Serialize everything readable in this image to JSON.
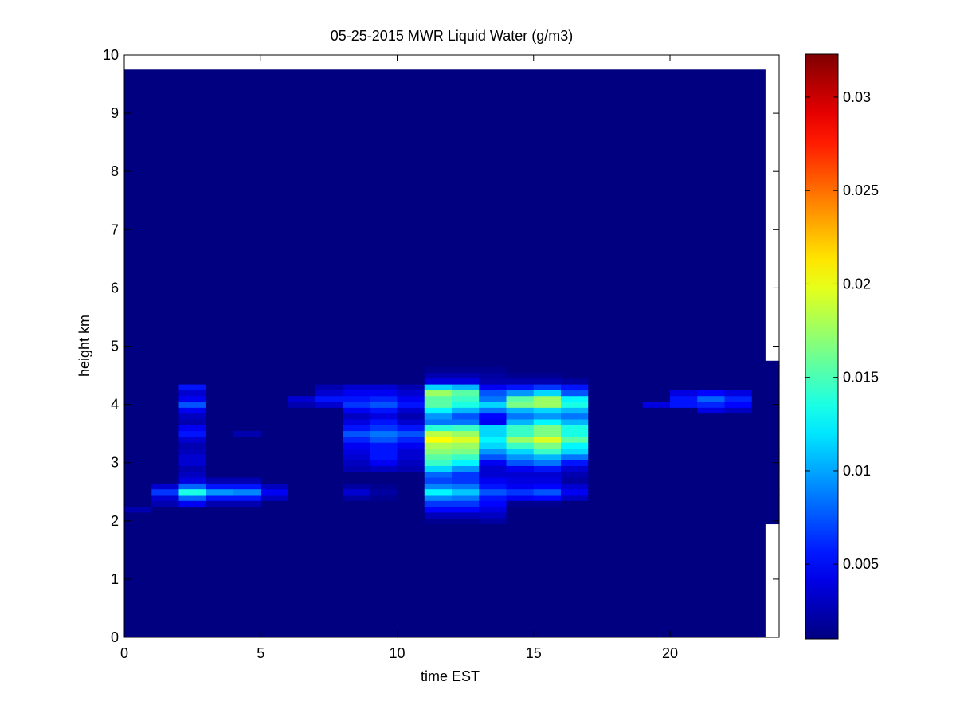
{
  "chart_data": {
    "type": "heatmap",
    "title": "05-25-2015 MWR Liquid Water (g/m3)",
    "xlabel": "time EST",
    "ylabel": "height km",
    "xlim": [
      0,
      24
    ],
    "ylim": [
      0,
      10
    ],
    "x_ticks": [
      0,
      5,
      10,
      15,
      20
    ],
    "y_ticks": [
      0,
      1,
      2,
      3,
      4,
      5,
      6,
      7,
      8,
      9,
      10
    ],
    "colormap": "jet",
    "colorbar": {
      "range": [
        0.001,
        0.0323
      ],
      "ticks": [
        0.005,
        0.01,
        0.015,
        0.02,
        0.025,
        0.03
      ],
      "tick_labels": [
        "0.005",
        "0.01",
        "0.015",
        "0.02",
        "0.025",
        "0.03"
      ]
    },
    "data_extent": {
      "x": [
        0,
        23.5
      ],
      "y": [
        0,
        9.75
      ]
    },
    "background_value": 0.001,
    "time_bins": [
      0.5,
      1.5,
      2.5,
      3.5,
      4.5,
      5.5,
      6.5,
      7.5,
      8.5,
      9.5,
      10.5,
      11.5,
      12.5,
      13.5,
      14.5,
      15.5,
      16.5,
      17.5,
      18.5,
      19.5,
      20.5,
      21.5,
      22.5,
      23.5
    ],
    "height_bins": [
      2.0,
      2.1,
      2.2,
      2.3,
      2.4,
      2.5,
      2.6,
      2.7,
      2.8,
      2.9,
      3.0,
      3.1,
      3.2,
      3.3,
      3.4,
      3.5,
      3.6,
      3.7,
      3.8,
      3.9,
      4.0,
      4.1,
      4.2,
      4.3,
      4.4,
      4.5,
      4.6,
      4.7
    ],
    "values": [
      [
        0.001,
        0.001,
        0.0025,
        0.001,
        0.001,
        0.001,
        0.001,
        0.001,
        0.001,
        0.001,
        0.001,
        0.001,
        0.001,
        0.001,
        0.001,
        0.001,
        0.001,
        0.001,
        0.001,
        0.001,
        0.001,
        0.001,
        0.001,
        0.001,
        0.001,
        0.001,
        0.001,
        0.001
      ],
      [
        0.001,
        0.001,
        0.001,
        0.0025,
        0.0035,
        0.0065,
        0.0035,
        0.001,
        0.001,
        0.001,
        0.001,
        0.001,
        0.001,
        0.001,
        0.001,
        0.001,
        0.001,
        0.001,
        0.001,
        0.001,
        0.001,
        0.001,
        0.001,
        0.001,
        0.001,
        0.001,
        0.001,
        0.001
      ],
      [
        0.001,
        0.001,
        0.001,
        0.0045,
        0.008,
        0.0135,
        0.008,
        0.004,
        0.003,
        0.0025,
        0.0035,
        0.0035,
        0.0028,
        0.0025,
        0.0035,
        0.0055,
        0.0045,
        0.0025,
        0.003,
        0.0045,
        0.0075,
        0.0045,
        0.0035,
        0.0055,
        0.001,
        0.001,
        0.001,
        0.001
      ],
      [
        0.001,
        0.001,
        0.001,
        0.0025,
        0.0055,
        0.0095,
        0.0055,
        0.0025,
        0.001,
        0.001,
        0.001,
        0.001,
        0.001,
        0.001,
        0.001,
        0.001,
        0.001,
        0.001,
        0.001,
        0.001,
        0.001,
        0.001,
        0.001,
        0.001,
        0.001,
        0.001,
        0.001,
        0.001
      ],
      [
        0.001,
        0.001,
        0.001,
        0.0025,
        0.0055,
        0.009,
        0.0055,
        0.0025,
        0.001,
        0.001,
        0.001,
        0.001,
        0.001,
        0.001,
        0.001,
        0.0025,
        0.001,
        0.001,
        0.001,
        0.001,
        0.001,
        0.001,
        0.001,
        0.001,
        0.001,
        0.001,
        0.001,
        0.001
      ],
      [
        0.001,
        0.001,
        0.001,
        0.001,
        0.003,
        0.0045,
        0.003,
        0.001,
        0.001,
        0.001,
        0.001,
        0.001,
        0.001,
        0.001,
        0.001,
        0.001,
        0.001,
        0.001,
        0.001,
        0.001,
        0.001,
        0.001,
        0.001,
        0.001,
        0.001,
        0.001,
        0.001,
        0.001
      ],
      [
        0.001,
        0.001,
        0.001,
        0.001,
        0.001,
        0.001,
        0.001,
        0.001,
        0.001,
        0.001,
        0.001,
        0.001,
        0.001,
        0.001,
        0.001,
        0.001,
        0.001,
        0.001,
        0.001,
        0.001,
        0.0025,
        0.0035,
        0.001,
        0.001,
        0.001,
        0.001,
        0.001,
        0.001
      ],
      [
        0.001,
        0.001,
        0.001,
        0.001,
        0.001,
        0.001,
        0.001,
        0.001,
        0.001,
        0.001,
        0.001,
        0.001,
        0.001,
        0.001,
        0.001,
        0.001,
        0.001,
        0.001,
        0.001,
        0.001,
        0.0035,
        0.0055,
        0.0035,
        0.0025,
        0.001,
        0.001,
        0.001,
        0.001
      ],
      [
        0.001,
        0.001,
        0.001,
        0.001,
        0.002,
        0.0035,
        0.002,
        0.001,
        0.001,
        0.0025,
        0.003,
        0.0035,
        0.004,
        0.0045,
        0.006,
        0.0075,
        0.0055,
        0.004,
        0.003,
        0.0045,
        0.0065,
        0.0055,
        0.0045,
        0.0035,
        0.001,
        0.001,
        0.001,
        0.001
      ],
      [
        0.001,
        0.001,
        0.001,
        0.001,
        0.0015,
        0.002,
        0.0015,
        0.001,
        0.001,
        0.003,
        0.0045,
        0.0055,
        0.0055,
        0.0055,
        0.0075,
        0.0085,
        0.0065,
        0.0055,
        0.004,
        0.0055,
        0.0075,
        0.006,
        0.0045,
        0.0035,
        0.001,
        0.001,
        0.001,
        0.001
      ],
      [
        0.001,
        0.001,
        0.001,
        0.001,
        0.001,
        0.001,
        0.001,
        0.001,
        0.001,
        0.0025,
        0.003,
        0.0035,
        0.0035,
        0.0045,
        0.006,
        0.0075,
        0.0055,
        0.0035,
        0.0025,
        0.0035,
        0.0055,
        0.0045,
        0.0035,
        0.0025,
        0.001,
        0.001,
        0.001,
        0.001
      ],
      [
        0.0015,
        0.0028,
        0.005,
        0.0065,
        0.009,
        0.0125,
        0.009,
        0.007,
        0.008,
        0.0115,
        0.0145,
        0.0155,
        0.017,
        0.018,
        0.0205,
        0.0185,
        0.014,
        0.0085,
        0.0095,
        0.0125,
        0.0155,
        0.0155,
        0.0175,
        0.0115,
        0.004,
        0.0025,
        0.0015,
        0.001
      ],
      [
        0.0015,
        0.0028,
        0.005,
        0.0065,
        0.0085,
        0.011,
        0.0085,
        0.0065,
        0.0065,
        0.0095,
        0.0125,
        0.0145,
        0.0165,
        0.0175,
        0.0195,
        0.0175,
        0.0145,
        0.0085,
        0.0075,
        0.0105,
        0.0135,
        0.0145,
        0.0155,
        0.0105,
        0.004,
        0.0025,
        0.0015,
        0.001
      ],
      [
        0.002,
        0.003,
        0.004,
        0.005,
        0.0055,
        0.0075,
        0.0055,
        0.0045,
        0.0035,
        0.0035,
        0.0045,
        0.0075,
        0.0095,
        0.0115,
        0.0125,
        0.0115,
        0.0115,
        0.0045,
        0.005,
        0.0085,
        0.0115,
        0.0085,
        0.0075,
        0.0045,
        0.0025,
        0.002,
        0.0015,
        0.001
      ],
      [
        0.001,
        0.001,
        0.001,
        0.0015,
        0.0045,
        0.0065,
        0.0045,
        0.004,
        0.0035,
        0.0045,
        0.0075,
        0.0095,
        0.0115,
        0.0145,
        0.0175,
        0.0145,
        0.0145,
        0.0105,
        0.0085,
        0.0105,
        0.0165,
        0.0155,
        0.0095,
        0.0055,
        0.0025,
        0.0015,
        0.001,
        0.001
      ],
      [
        0.001,
        0.001,
        0.001,
        0.0015,
        0.005,
        0.0075,
        0.005,
        0.004,
        0.0035,
        0.0055,
        0.0085,
        0.0105,
        0.0145,
        0.0165,
        0.0195,
        0.0165,
        0.0165,
        0.0125,
        0.0095,
        0.0115,
        0.0175,
        0.0175,
        0.0115,
        0.0065,
        0.0025,
        0.0015,
        0.001,
        0.001
      ],
      [
        0.001,
        0.001,
        0.001,
        0.001,
        0.003,
        0.0045,
        0.0035,
        0.002,
        0.0025,
        0.0035,
        0.0055,
        0.0085,
        0.0115,
        0.0125,
        0.0155,
        0.0135,
        0.0135,
        0.0105,
        0.0085,
        0.0105,
        0.0135,
        0.0125,
        0.0075,
        0.0055,
        0.002,
        0.001,
        0.001,
        0.001
      ],
      [
        0.001,
        0.001,
        0.001,
        0.001,
        0.001,
        0.001,
        0.001,
        0.001,
        0.001,
        0.001,
        0.001,
        0.001,
        0.001,
        0.001,
        0.001,
        0.001,
        0.001,
        0.001,
        0.001,
        0.001,
        0.001,
        0.001,
        0.001,
        0.001,
        0.001,
        0.001,
        0.001,
        0.001
      ],
      [
        0.001,
        0.001,
        0.001,
        0.001,
        0.001,
        0.001,
        0.001,
        0.001,
        0.001,
        0.001,
        0.001,
        0.001,
        0.001,
        0.001,
        0.001,
        0.001,
        0.001,
        0.001,
        0.001,
        0.001,
        0.001,
        0.001,
        0.001,
        0.001,
        0.001,
        0.001,
        0.001,
        0.001
      ],
      [
        0.001,
        0.001,
        0.001,
        0.001,
        0.001,
        0.001,
        0.001,
        0.001,
        0.001,
        0.001,
        0.001,
        0.001,
        0.001,
        0.001,
        0.001,
        0.001,
        0.001,
        0.001,
        0.001,
        0.001,
        0.004,
        0.001,
        0.001,
        0.001,
        0.001,
        0.001,
        0.001,
        0.001
      ],
      [
        0.001,
        0.001,
        0.001,
        0.001,
        0.001,
        0.001,
        0.001,
        0.001,
        0.001,
        0.001,
        0.001,
        0.001,
        0.001,
        0.001,
        0.001,
        0.001,
        0.001,
        0.001,
        0.001,
        0.001,
        0.0055,
        0.0055,
        0.004,
        0.001,
        0.001,
        0.001,
        0.001,
        0.001
      ],
      [
        0.001,
        0.001,
        0.001,
        0.001,
        0.001,
        0.001,
        0.001,
        0.001,
        0.001,
        0.001,
        0.001,
        0.001,
        0.001,
        0.001,
        0.001,
        0.001,
        0.001,
        0.001,
        0.001,
        0.004,
        0.006,
        0.008,
        0.005,
        0.001,
        0.001,
        0.001,
        0.001,
        0.001
      ],
      [
        0.001,
        0.001,
        0.001,
        0.001,
        0.001,
        0.001,
        0.001,
        0.001,
        0.001,
        0.001,
        0.001,
        0.001,
        0.001,
        0.001,
        0.001,
        0.001,
        0.001,
        0.001,
        0.001,
        0.003,
        0.005,
        0.006,
        0.004,
        0.001,
        0.001,
        0.001,
        0.001,
        0.001
      ],
      [
        0.001,
        0.001,
        0.001,
        0.001,
        0.001,
        0.001,
        0.001,
        0.001,
        0.001,
        0.001,
        0.001,
        0.001,
        0.001,
        0.001,
        0.001,
        0.001,
        0.001,
        0.001,
        0.001,
        0.001,
        0.001,
        0.001,
        0.001,
        0.001,
        0.001,
        0.001,
        0.001,
        0.001
      ]
    ]
  }
}
